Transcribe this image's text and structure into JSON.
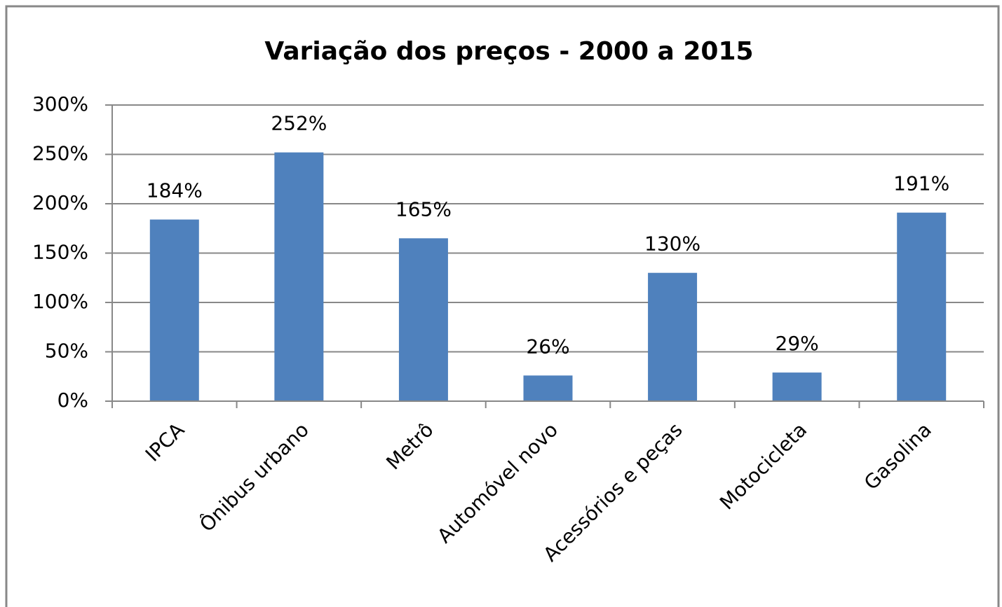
{
  "chart_data": {
    "type": "bar",
    "title": "Variação dos preços - 2000 a 2015",
    "categories": [
      "IPCA",
      "Ônibus urbano",
      "Metrô",
      "Automóvel novo",
      "Acessórios e peças",
      "Motocicleta",
      "Gasolina"
    ],
    "values": [
      184,
      252,
      165,
      26,
      130,
      29,
      191
    ],
    "value_labels": [
      "184%",
      "252%",
      "165%",
      "26%",
      "130%",
      "29%",
      "191%"
    ],
    "color": "#4f81bd",
    "ylim": [
      0,
      300
    ],
    "yticks": [
      {
        "value": 0,
        "label": "0%"
      },
      {
        "value": 50,
        "label": "50%"
      },
      {
        "value": 100,
        "label": "100%"
      },
      {
        "value": 150,
        "label": "150%"
      },
      {
        "value": 200,
        "label": "200%"
      },
      {
        "value": 250,
        "label": "250%"
      },
      {
        "value": 300,
        "label": "300%"
      }
    ],
    "grid": true
  }
}
